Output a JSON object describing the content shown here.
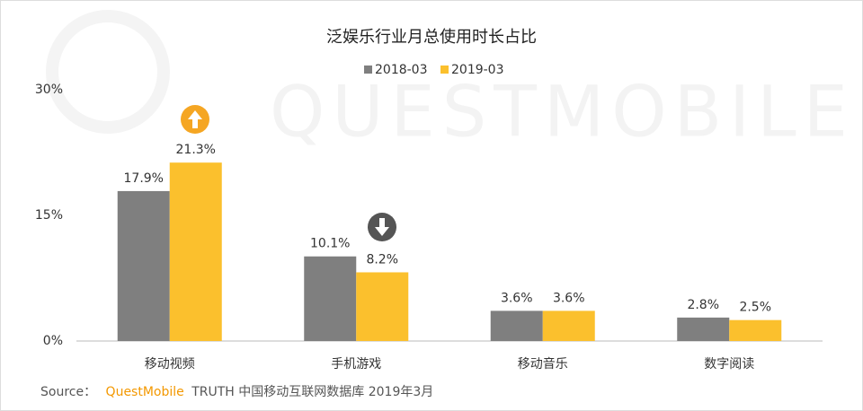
{
  "chart_data": {
    "type": "bar",
    "title": "泛娱乐行业月总使用时长占比",
    "watermark": "QUESTMOBILE",
    "categories": [
      "移动视频",
      "手机游戏",
      "移动音乐",
      "数字阅读"
    ],
    "series": [
      {
        "name": "2018-03",
        "color": "#7f7f7f",
        "values": [
          17.9,
          10.1,
          3.6,
          2.8
        ],
        "value_labels": [
          "17.9%",
          "10.1%",
          "3.6%",
          "2.8%"
        ]
      },
      {
        "name": "2019-03",
        "color": "#fbc02d",
        "values": [
          21.3,
          8.2,
          3.6,
          2.5
        ],
        "value_labels": [
          "21.3%",
          "8.2%",
          "3.6%",
          "2.5%"
        ]
      }
    ],
    "ylim": [
      0,
      30
    ],
    "yticks": [
      {
        "value": 0,
        "label": "0%"
      },
      {
        "value": 15,
        "label": "15%"
      },
      {
        "value": 30,
        "label": "30%"
      }
    ],
    "legend": "top",
    "source": {
      "label": "Source：",
      "brand": "QuestMobile",
      "text": "TRUTH 中国移动互联网数据库 2019年3月"
    }
  }
}
